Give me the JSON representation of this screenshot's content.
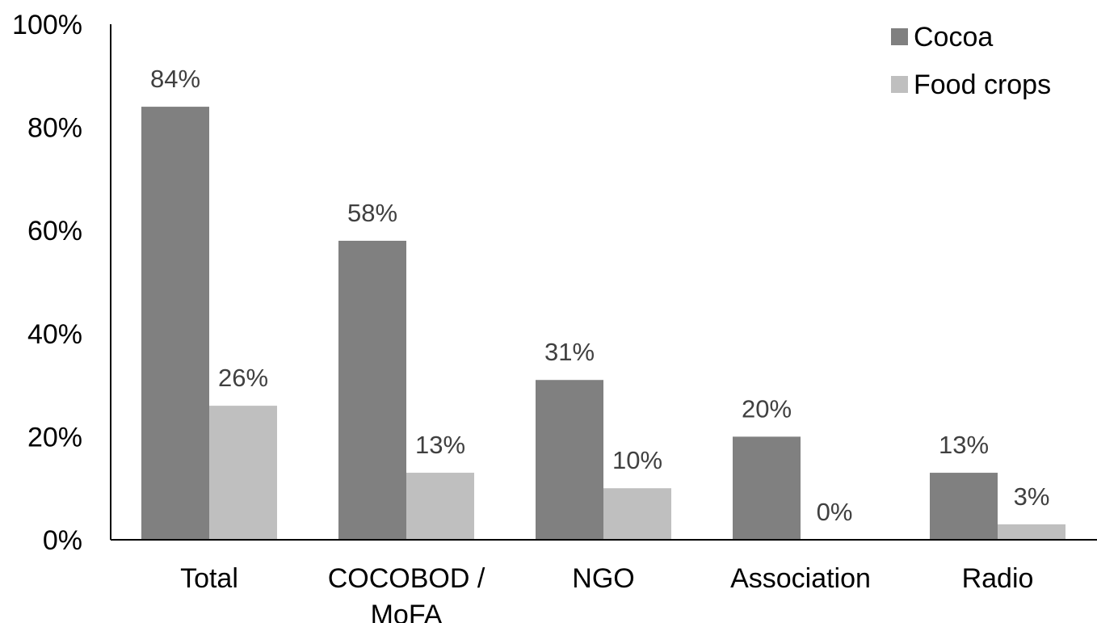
{
  "chart_data": {
    "type": "bar",
    "categories": [
      "Total",
      "COCOBOD / MoFA",
      "NGO",
      "Association",
      "Radio"
    ],
    "category_lines": [
      [
        "Total"
      ],
      [
        "COCOBOD /",
        "MoFA"
      ],
      [
        "NGO"
      ],
      [
        "Association"
      ],
      [
        "Radio"
      ]
    ],
    "series": [
      {
        "name": "Cocoa",
        "color": "#808080",
        "values": [
          84,
          58,
          31,
          20,
          13
        ],
        "labels": [
          "84%",
          "58%",
          "31%",
          "20%",
          "13%"
        ]
      },
      {
        "name": "Food crops",
        "color": "#bfbfbf",
        "values": [
          26,
          13,
          10,
          0,
          3
        ],
        "labels": [
          "26%",
          "13%",
          "10%",
          "0%",
          "3%"
        ]
      }
    ],
    "ylim": [
      0,
      100
    ],
    "yticks": [
      0,
      20,
      40,
      60,
      80,
      100
    ],
    "ytick_labels": [
      "0%",
      "20%",
      "40%",
      "60%",
      "80%",
      "100%"
    ],
    "title": "",
    "xlabel": "",
    "ylabel": "",
    "grid": false,
    "legend_position": "top-right"
  }
}
